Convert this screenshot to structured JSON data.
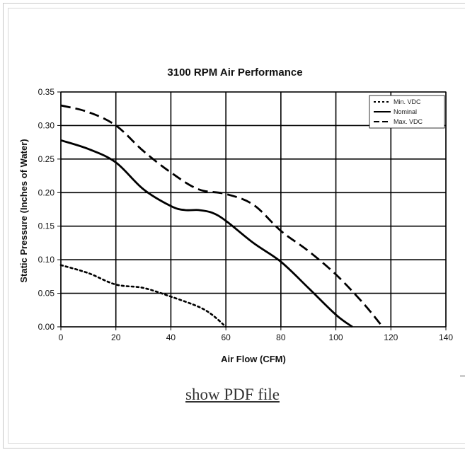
{
  "link": {
    "label": "show PDF file"
  },
  "chart_data": {
    "type": "line",
    "title": "3100 RPM Air Performance",
    "xlabel": "Air Flow (CFM)",
    "ylabel": "Static Pressure (Inches of Water)",
    "xlim": [
      0,
      140
    ],
    "ylim": [
      0,
      0.35
    ],
    "xticks": [
      "0",
      "20",
      "40",
      "60",
      "80",
      "100",
      "120",
      "140"
    ],
    "yticks": [
      "0.00",
      "0.05",
      "0.10",
      "0.15",
      "0.20",
      "0.25",
      "0.30",
      "0.35"
    ],
    "grid": true,
    "legend_position": "top-right",
    "series": [
      {
        "name": "Min. VDC",
        "style": "dotted",
        "color": "#000000",
        "points": [
          [
            0,
            0.092
          ],
          [
            10,
            0.08
          ],
          [
            20,
            0.063
          ],
          [
            30,
            0.058
          ],
          [
            40,
            0.045
          ],
          [
            50,
            0.03
          ],
          [
            55,
            0.018
          ],
          [
            60,
            0.0
          ]
        ]
      },
      {
        "name": "Nominal",
        "style": "solid",
        "color": "#000000",
        "points": [
          [
            0,
            0.278
          ],
          [
            10,
            0.265
          ],
          [
            20,
            0.245
          ],
          [
            30,
            0.205
          ],
          [
            40,
            0.18
          ],
          [
            45,
            0.174
          ],
          [
            50,
            0.174
          ],
          [
            55,
            0.17
          ],
          [
            60,
            0.158
          ],
          [
            70,
            0.125
          ],
          [
            80,
            0.097
          ],
          [
            90,
            0.058
          ],
          [
            100,
            0.018
          ],
          [
            106,
            0.0
          ]
        ]
      },
      {
        "name": "Max. VDC",
        "style": "dashed",
        "color": "#000000",
        "points": [
          [
            0,
            0.33
          ],
          [
            10,
            0.32
          ],
          [
            20,
            0.3
          ],
          [
            30,
            0.262
          ],
          [
            40,
            0.23
          ],
          [
            50,
            0.205
          ],
          [
            60,
            0.198
          ],
          [
            70,
            0.182
          ],
          [
            80,
            0.143
          ],
          [
            90,
            0.113
          ],
          [
            100,
            0.078
          ],
          [
            110,
            0.035
          ],
          [
            117,
            0.0
          ]
        ]
      }
    ]
  }
}
